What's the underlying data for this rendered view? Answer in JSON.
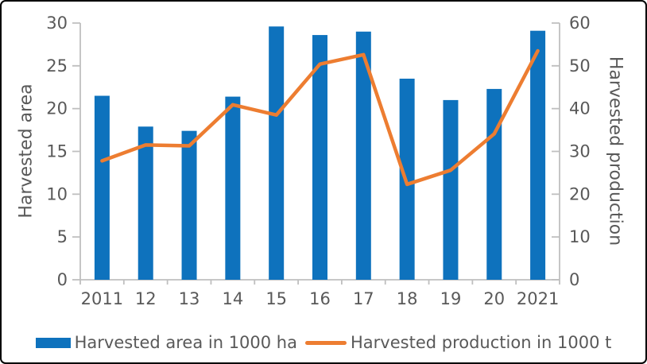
{
  "window": {
    "background": "#FFFFFF",
    "border_color": "#000000"
  },
  "chart_data": {
    "type": "combo-bar-line",
    "categories": [
      "2011",
      "12",
      "13",
      "14",
      "15",
      "16",
      "17",
      "18",
      "19",
      "20",
      "2021"
    ],
    "series": [
      {
        "name": "Harvested area in 1000 ha",
        "type": "bar",
        "axis": "left",
        "color": "#0E72BD",
        "values": [
          21.5,
          17.9,
          17.4,
          21.4,
          29.6,
          28.6,
          29.0,
          23.5,
          21.0,
          22.3,
          29.1
        ]
      },
      {
        "name": "Harvested production in 1000 t",
        "type": "line",
        "axis": "right",
        "color": "#ED7D31",
        "values": [
          27.8,
          31.5,
          31.3,
          40.9,
          38.5,
          50.4,
          52.6,
          22.3,
          25.6,
          34.1,
          53.5
        ]
      }
    ],
    "left_axis": {
      "label": "Harvested area",
      "min": 0,
      "max": 30,
      "step": 5
    },
    "right_axis": {
      "label": "Harvested production",
      "min": 0,
      "max": 60,
      "step": 10
    },
    "grid": false,
    "legend_position": "bottom",
    "text_color": "#595959",
    "axis_color": "#BFBFBF"
  }
}
